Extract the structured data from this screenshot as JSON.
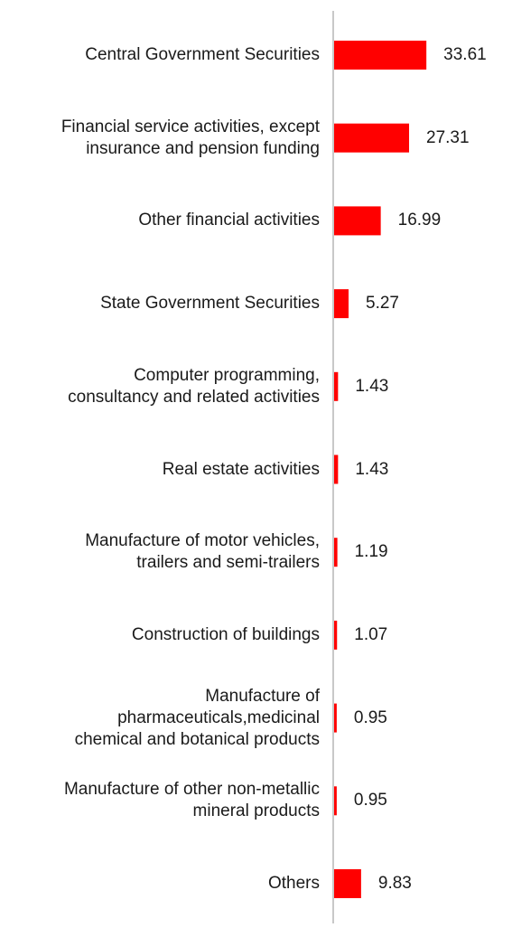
{
  "colors": {
    "bar": "#ff0000",
    "axis": "#c8c8c8",
    "text": "#1a1a1a"
  },
  "chart_data": {
    "type": "bar",
    "orientation": "horizontal",
    "title": "",
    "xlabel": "",
    "ylabel": "",
    "grid": false,
    "legend": "none",
    "xlim": [
      0,
      40
    ],
    "categories": [
      "Central Government Securities",
      "Financial service activities, except\ninsurance and pension funding",
      "Other financial activities",
      "State Government Securities",
      "Computer programming,\nconsultancy and related activities",
      "Real estate activities",
      "Manufacture of motor vehicles,\ntrailers and semi-trailers",
      "Construction of buildings",
      "Manufacture of\npharmaceuticals,medicinal\nchemical and botanical products",
      "Manufacture of other non-metallic\nmineral products",
      "Others"
    ],
    "values": [
      33.61,
      27.31,
      16.99,
      5.27,
      1.43,
      1.43,
      1.19,
      1.07,
      0.95,
      0.95,
      9.83
    ],
    "value_labels": [
      "33.61",
      "27.31",
      "16.99",
      "5.27",
      "1.43",
      "1.43",
      "1.19",
      "1.07",
      "0.95",
      "0.95",
      "9.83"
    ]
  }
}
